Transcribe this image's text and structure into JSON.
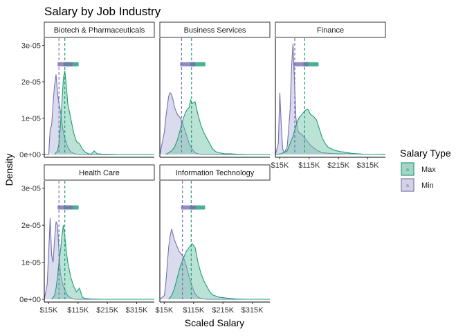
{
  "chart_data": {
    "type": "area",
    "title": "Salary by Job Industry",
    "xlabel": "Scaled Salary",
    "ylabel": "Density",
    "facet_layout": "3 columns x 2 rows, shared axes",
    "x_ticks": [
      "$15K",
      "$115K",
      "$215K",
      "$315K"
    ],
    "x_tick_values": [
      15,
      115,
      215,
      315
    ],
    "x_range": [
      0,
      375
    ],
    "y_ticks": [
      "0e+00",
      "1e-05",
      "2e-05",
      "3e-05"
    ],
    "y_tick_values": [
      0,
      1e-05,
      2e-05,
      3e-05
    ],
    "y_range": [
      0,
      3.2e-05
    ],
    "grid": false,
    "legend": {
      "title": "Salary Type",
      "placement": "right",
      "key_letter": "a",
      "entries": [
        {
          "label": "Max",
          "fill": "#1b9e77",
          "line": "#1b9e77"
        },
        {
          "label": "Min",
          "fill": "#9e9ac8",
          "line": "#7570b3"
        }
      ]
    },
    "colors": {
      "max": "#1b9e77",
      "min": "#7570b3",
      "min_fill": "#bcbddc",
      "max_fill": "#66c2a5"
    },
    "panels": [
      {
        "name": "Biotech & Pharmaceuticals",
        "series": [
          {
            "name": "Max",
            "mean": 70,
            "x": [
              35,
              45,
              50,
              55,
              60,
              65,
              70,
              75,
              80,
              90,
              100,
              110,
              120,
              130,
              140,
              150,
              160,
              170,
              180,
              200,
              220,
              250,
              300,
              375
            ],
            "y": [
              0,
              1e-06,
              3e-06,
              8e-06,
              1.4e-05,
              2.1e-05,
              2.3e-05,
              1.9e-05,
              1.4e-05,
              1e-05,
              6e-06,
              3.5e-06,
              3e-06,
              1.5e-06,
              6e-07,
              2e-07,
              1e-07,
              1e-06,
              2e-07,
              1e-07,
              1e-07,
              0,
              0,
              0
            ]
          },
          {
            "name": "Min",
            "mean": 50,
            "x": [
              0,
              15,
              20,
              25,
              30,
              35,
              40,
              45,
              50,
              55,
              60,
              65,
              70,
              80,
              90,
              100,
              110,
              120,
              130,
              140,
              150,
              375
            ],
            "y": [
              0,
              0,
              7e-06,
              8e-06,
              1.4e-05,
              1.9e-05,
              2.2e-05,
              1.7e-05,
              1.4e-05,
              1.2e-05,
              9e-06,
              6e-06,
              4.5e-06,
              2e-06,
              8e-07,
              3e-07,
              1e-07,
              0,
              0,
              0,
              0,
              0
            ]
          }
        ]
      },
      {
        "name": "Business Services",
        "series": [
          {
            "name": "Max",
            "mean": 108,
            "x": [
              20,
              40,
              50,
              60,
              70,
              80,
              90,
              100,
              105,
              110,
              120,
              130,
              140,
              150,
              160,
              170,
              180,
              190,
              200,
              220,
              240,
              260,
              300,
              375
            ],
            "y": [
              0,
              1e-06,
              2e-06,
              4e-06,
              7e-06,
              1e-05,
              1.2e-05,
              1.3e-05,
              1.5e-05,
              1.4e-05,
              1.45e-05,
              1.1e-05,
              8e-06,
              6e-06,
              4.5e-06,
              3e-06,
              1.5e-06,
              8e-07,
              5e-07,
              2e-07,
              2e-07,
              1e-07,
              0,
              0
            ]
          },
          {
            "name": "Min",
            "mean": 74,
            "x": [
              0,
              15,
              20,
              25,
              30,
              35,
              40,
              45,
              50,
              55,
              60,
              65,
              70,
              80,
              90,
              100,
              110,
              120,
              130,
              140,
              150,
              375
            ],
            "y": [
              0,
              6e-06,
              1e-05,
              1.3e-05,
              1.6e-05,
              1.7e-05,
              1.65e-05,
              1.5e-05,
              1.3e-05,
              1.2e-05,
              1.1e-05,
              1.05e-05,
              1e-05,
              8e-06,
              5.5e-06,
              3e-06,
              1.5e-06,
              5e-07,
              2e-07,
              0,
              0,
              0
            ]
          }
        ]
      },
      {
        "name": "Finance",
        "series": [
          {
            "name": "Max",
            "mean": 100,
            "x": [
              0,
              20,
              40,
              50,
              60,
              70,
              80,
              90,
              100,
              110,
              120,
              130,
              140,
              150,
              160,
              170,
              180,
              200,
              220,
              240,
              260,
              280,
              300,
              330,
              360,
              375
            ],
            "y": [
              0,
              2e-07,
              1e-06,
              3e-06,
              5e-06,
              8e-06,
              1e-05,
              1.1e-05,
              1.2e-05,
              1.25e-05,
              1.1e-05,
              1.05e-05,
              9.5e-06,
              7e-06,
              4.5e-06,
              3e-06,
              2e-06,
              1.2e-06,
              8e-07,
              6e-07,
              3e-07,
              2e-07,
              1e-07,
              1e-07,
              1e-07,
              0
            ]
          },
          {
            "name": "Min",
            "mean": 66,
            "x": [
              0,
              10,
              15,
              20,
              25,
              30,
              40,
              50,
              55,
              60,
              65,
              70,
              75,
              80,
              90,
              100,
              110,
              120,
              140,
              160,
              200,
              250,
              300,
              330,
              360,
              375
            ],
            "y": [
              0,
              3e-06,
              1.7e-05,
              8e-06,
              1.5e-06,
              5e-07,
              2e-06,
              1.2e-05,
              2.4e-05,
              3.05e-05,
              2e-05,
              1e-05,
              7e-06,
              6e-06,
              5.5e-06,
              4.5e-06,
              3.5e-06,
              2.5e-06,
              1.2e-06,
              5e-07,
              2e-07,
              2e-07,
              1e-07,
              1e-07,
              1e-07,
              0
            ]
          }
        ]
      },
      {
        "name": "Health Care",
        "series": [
          {
            "name": "Max",
            "mean": 70,
            "x": [
              25,
              35,
              40,
              45,
              50,
              55,
              60,
              65,
              70,
              75,
              80,
              90,
              100,
              110,
              120,
              130,
              140,
              160,
              200,
              375
            ],
            "y": [
              0,
              1e-06,
              3e-06,
              6e-06,
              1e-05,
              1.3e-05,
              1.7e-05,
              2e-05,
              1.7e-05,
              1.3e-05,
              1e-05,
              6e-06,
              3.5e-06,
              2e-06,
              3e-06,
              5e-07,
              2e-07,
              1e-07,
              0,
              0
            ]
          },
          {
            "name": "Min",
            "mean": 50,
            "x": [
              0,
              10,
              15,
              20,
              25,
              30,
              35,
              40,
              45,
              50,
              55,
              60,
              65,
              70,
              80,
              90,
              100,
              110,
              120,
              375
            ],
            "y": [
              0,
              4e-06,
              1.3e-05,
              2.2e-05,
              1.2e-05,
              1e-05,
              1.6e-05,
              2.1e-05,
              2e-05,
              1.3e-05,
              7e-06,
              5e-06,
              3.5e-06,
              2.5e-06,
              1e-06,
              4e-07,
              1e-07,
              0,
              0,
              0
            ]
          }
        ]
      },
      {
        "name": "Information Technology",
        "series": [
          {
            "name": "Max",
            "mean": 107,
            "x": [
              30,
              40,
              50,
              60,
              70,
              80,
              90,
              100,
              105,
              110,
              115,
              120,
              125,
              130,
              140,
              150,
              160,
              170,
              180,
              200,
              230,
              260,
              300,
              375
            ],
            "y": [
              0,
              1e-06,
              3e-06,
              6e-06,
              9e-06,
              1.1e-05,
              1.3e-05,
              1.4e-05,
              1.45e-05,
              1.5e-05,
              1.45e-05,
              1.4e-05,
              1.2e-05,
              1e-05,
              7e-06,
              5e-06,
              3.5e-06,
              2e-06,
              1.2e-06,
              6e-07,
              3e-07,
              1e-07,
              0,
              0
            ]
          },
          {
            "name": "Min",
            "mean": 77,
            "x": [
              0,
              15,
              20,
              25,
              30,
              35,
              40,
              45,
              50,
              55,
              60,
              65,
              70,
              75,
              80,
              90,
              100,
              110,
              120,
              130,
              140,
              160,
              375
            ],
            "y": [
              0,
              1e-06,
              4e-06,
              9e-06,
              1.4e-05,
              1.7e-05,
              1.9e-05,
              1.75e-05,
              1.6e-05,
              1.5e-05,
              1.4e-05,
              1.3e-05,
              1.25e-05,
              1.2e-05,
              1.15e-05,
              9e-06,
              6e-06,
              3.5e-06,
              1.5e-06,
              6e-07,
              2e-07,
              0,
              0
            ]
          }
        ]
      }
    ]
  }
}
